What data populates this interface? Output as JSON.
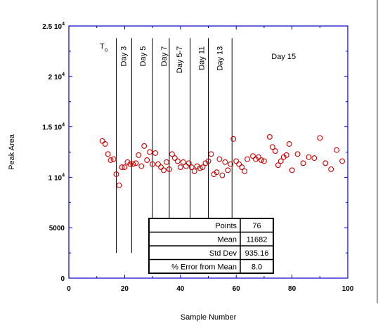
{
  "chart_data": {
    "type": "scatter",
    "title": "",
    "xlabel": "Sample Number",
    "ylabel": "Peak Area",
    "xlim": [
      0,
      100
    ],
    "ylim": [
      0,
      25000
    ],
    "x_ticks": [
      {
        "v": 0,
        "label": "0"
      },
      {
        "v": 20,
        "label": "20"
      },
      {
        "v": 40,
        "label": "40"
      },
      {
        "v": 60,
        "label": "60"
      },
      {
        "v": 80,
        "label": "80"
      },
      {
        "v": 100,
        "label": "100"
      }
    ],
    "y_ticks": [
      {
        "v": 0,
        "base": "0",
        "exp": ""
      },
      {
        "v": 5000,
        "base": "5000",
        "exp": ""
      },
      {
        "v": 10000,
        "base": "1 10",
        "exp": "4"
      },
      {
        "v": 15000,
        "base": "1.5 10",
        "exp": "4"
      },
      {
        "v": 20000,
        "base": "2 10",
        "exp": "4"
      },
      {
        "v": 25000,
        "base": "2.5 10",
        "exp": "4"
      }
    ],
    "grid": false,
    "marker_color": "#cc0000",
    "x": [
      12,
      13,
      14,
      15,
      16,
      17,
      18,
      19,
      20,
      21,
      22,
      23,
      24,
      25,
      26,
      27,
      28,
      29,
      30,
      31,
      32,
      33,
      34,
      35,
      36,
      37,
      38,
      39,
      40,
      41,
      42,
      43,
      44,
      45,
      46,
      47,
      48,
      49,
      50,
      51,
      52,
      53,
      54,
      55,
      56,
      57,
      58,
      59,
      60,
      61,
      62,
      63,
      64,
      66,
      67,
      68,
      69,
      70,
      72,
      73,
      74,
      75,
      76,
      77,
      78,
      79,
      80,
      82,
      84,
      86,
      88,
      90,
      92,
      94,
      96,
      98
    ],
    "values": [
      13600,
      13300,
      12300,
      11700,
      11800,
      10300,
      9200,
      11000,
      11000,
      11500,
      11300,
      11300,
      11400,
      12200,
      11100,
      13100,
      11700,
      12500,
      11300,
      12400,
      11300,
      11000,
      10700,
      11500,
      10800,
      12300,
      11900,
      11600,
      11000,
      11500,
      11100,
      11400,
      11000,
      10600,
      11100,
      10900,
      11000,
      11400,
      11600,
      12300,
      10300,
      10500,
      11800,
      10200,
      11500,
      10700,
      11300,
      13800,
      11600,
      11300,
      11000,
      10600,
      11800,
      12100,
      11800,
      12000,
      11700,
      11600,
      14000,
      13000,
      12600,
      11200,
      11600,
      12000,
      12200,
      13300,
      10700,
      12300,
      11400,
      12000,
      11900,
      13900,
      11400,
      10800,
      12700,
      11600
    ],
    "annotations": {
      "lines_x": [
        17,
        22.5,
        30,
        36,
        43.5,
        50,
        58.5
      ],
      "line_y_range": [
        2500,
        23800
      ],
      "labels": [
        {
          "x": 12.5,
          "y": 23000,
          "text": "T",
          "sub": "o",
          "rotated": false
        },
        {
          "x": 19.5,
          "y": 23000,
          "text": "Day 3",
          "rotated": true
        },
        {
          "x": 26.5,
          "y": 23000,
          "text": "Day 5",
          "rotated": true
        },
        {
          "x": 34,
          "y": 23000,
          "text": "Day 7",
          "rotated": true
        },
        {
          "x": 39.5,
          "y": 23000,
          "text": "Day 5-7",
          "rotated": true
        },
        {
          "x": 47.5,
          "y": 23000,
          "text": "Day 11",
          "rotated": true
        },
        {
          "x": 54,
          "y": 23000,
          "text": "Day 13",
          "rotated": true
        },
        {
          "x": 77,
          "y": 22000,
          "text": "Day 15",
          "rotated": false
        }
      ]
    },
    "stats_table": [
      {
        "label": "Points",
        "value": "76"
      },
      {
        "label": "Mean",
        "value": "11682"
      },
      {
        "label": "Std Dev",
        "value": "935.16"
      },
      {
        "label": "% Error from Mean",
        "value": "8.0"
      }
    ]
  }
}
